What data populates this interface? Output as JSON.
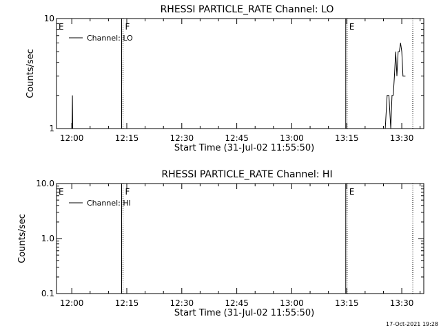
{
  "footer_date": "17-Oct-2021 19:28",
  "chart_data": [
    {
      "type": "line",
      "title": "RHESSI PARTICLE_RATE Channel: LO",
      "xlabel": "Start Time (31-Jul-02 11:55:50)",
      "ylabel": "Counts/sec",
      "yscale": "log",
      "ylim": [
        1,
        10
      ],
      "xlim": [
        "11:55:50",
        "13:36:00"
      ],
      "ytick_labels": [
        "1",
        "10"
      ],
      "ytick_values": [
        1,
        10
      ],
      "xtick_labels": [
        "12:00",
        "12:15",
        "12:30",
        "12:45",
        "13:00",
        "13:15",
        "13:30"
      ],
      "legend": {
        "position": "top-left",
        "entries": [
          "Channel: LO"
        ]
      },
      "grid": false,
      "event_markers": [
        {
          "label": "E",
          "time": "11:55:50",
          "style": "none"
        },
        {
          "label": "F",
          "time": "12:13:58",
          "style": "solid+dotted"
        },
        {
          "label": "E",
          "time": "13:15:06",
          "style": "solid+dotted"
        },
        {
          "label": "",
          "time": "13:33:00",
          "style": "dotted"
        }
      ],
      "series": [
        {
          "name": "Channel: LO",
          "segments": [
            [
              [
                "11:59:40",
                1
              ],
              [
                "12:00:05",
                1
              ],
              [
                "12:00:10",
                2
              ],
              [
                "12:00:15",
                1
              ]
            ],
            [
              [
                "13:25:30",
                1
              ],
              [
                "13:26:00",
                2
              ],
              [
                "13:26:30",
                2
              ],
              [
                "13:27:00",
                1
              ],
              [
                "13:27:20",
                2
              ],
              [
                "13:27:40",
                2
              ],
              [
                "13:28:00",
                3
              ],
              [
                "13:28:20",
                5
              ],
              [
                "13:28:40",
                3
              ],
              [
                "13:29:00",
                5
              ],
              [
                "13:29:20",
                5
              ],
              [
                "13:29:40",
                6
              ],
              [
                "13:30:00",
                5
              ],
              [
                "13:30:20",
                3
              ],
              [
                "13:30:40",
                3
              ],
              [
                "13:31:00",
                3
              ]
            ]
          ]
        }
      ]
    },
    {
      "type": "line",
      "title": "RHESSI PARTICLE_RATE Channel: HI",
      "xlabel": "Start Time (31-Jul-02 11:55:50)",
      "ylabel": "Counts/sec",
      "yscale": "log",
      "ylim": [
        0.1,
        10
      ],
      "xlim": [
        "11:55:50",
        "13:36:00"
      ],
      "ytick_labels": [
        "0.1",
        "1.0",
        "10.0"
      ],
      "ytick_values": [
        0.1,
        1,
        10
      ],
      "xtick_labels": [
        "12:00",
        "12:15",
        "12:30",
        "12:45",
        "13:00",
        "13:15",
        "13:30"
      ],
      "legend": {
        "position": "top-left",
        "entries": [
          "Channel: HI"
        ]
      },
      "grid": false,
      "event_markers": [
        {
          "label": "E",
          "time": "11:55:50",
          "style": "none"
        },
        {
          "label": "F",
          "time": "12:13:58",
          "style": "solid+dotted"
        },
        {
          "label": "E",
          "time": "13:15:06",
          "style": "solid+dotted"
        },
        {
          "label": "",
          "time": "13:33:00",
          "style": "dotted"
        }
      ],
      "series": [
        {
          "name": "Channel: HI",
          "segments": []
        }
      ]
    }
  ]
}
